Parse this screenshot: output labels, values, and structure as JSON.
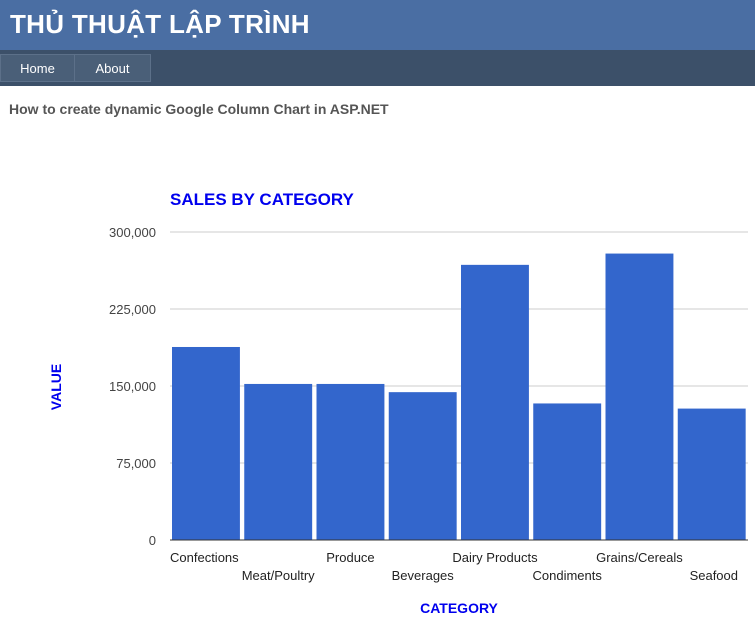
{
  "header": {
    "site_title": "THỦ THUẬT LẬP TRÌNH"
  },
  "nav": {
    "items": [
      {
        "label": "Home"
      },
      {
        "label": "About"
      }
    ]
  },
  "page": {
    "subtitle": "How to create dynamic Google Column Chart in ASP.NET"
  },
  "colors": {
    "header_bg": "#4a6ea3",
    "nav_bg": "#3c5069",
    "bar": "#3366cc",
    "chart_title": "#0000ee"
  },
  "chart_data": {
    "type": "bar",
    "title": "SALES BY CATEGORY",
    "xlabel": "CATEGORY",
    "ylabel": "VALUE",
    "categories": [
      "Confections",
      "Meat/Poultry",
      "Produce",
      "Beverages",
      "Dairy Products",
      "Condiments",
      "Grains/Cereals",
      "Seafood"
    ],
    "values": [
      188000,
      152000,
      152000,
      144000,
      268000,
      133000,
      279000,
      128000
    ],
    "yticks": [
      "0",
      "75,000",
      "150,000",
      "225,000",
      "300,000"
    ],
    "ylim": [
      0,
      300000
    ],
    "grid": true,
    "legend": "none"
  }
}
